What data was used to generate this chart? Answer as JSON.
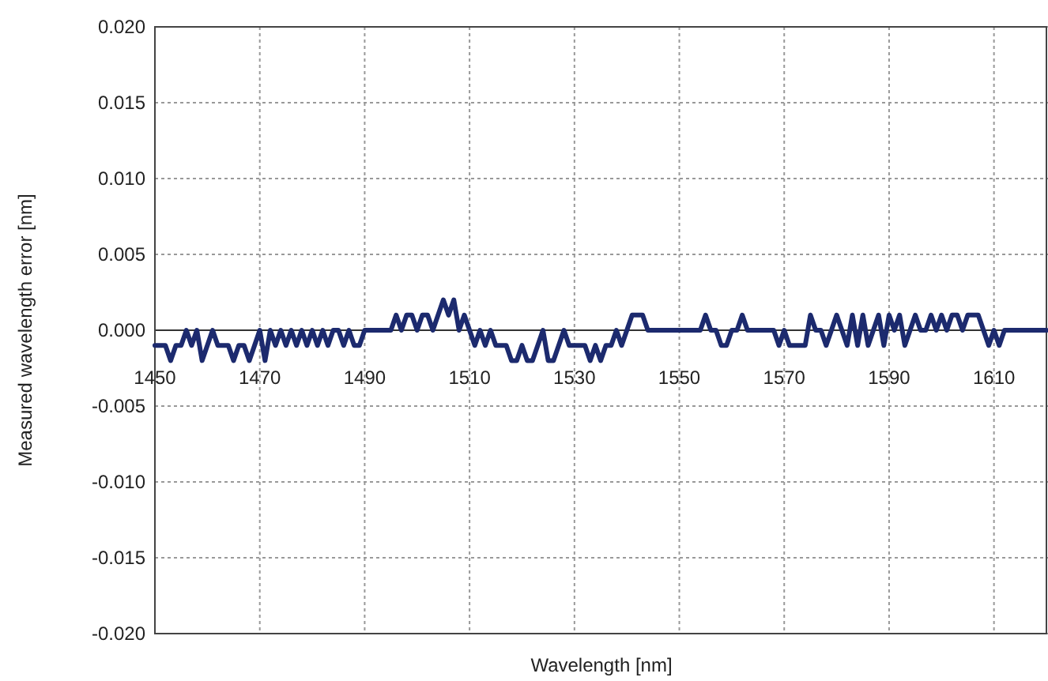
{
  "chart_data": {
    "type": "line",
    "xlabel": "Wavelength  [nm]",
    "ylabel": "Measured wavelength error  [nm]",
    "xlim": [
      1450,
      1620
    ],
    "xticks": [
      1450,
      1470,
      1490,
      1510,
      1530,
      1550,
      1570,
      1590,
      1610
    ],
    "ylim": [
      -0.02,
      0.02
    ],
    "yticks": [
      {
        "value": -0.02,
        "label": "-0.020"
      },
      {
        "value": -0.015,
        "label": "-0.015"
      },
      {
        "value": -0.01,
        "label": "-0.010"
      },
      {
        "value": -0.005,
        "label": "-0.005"
      },
      {
        "value": 0,
        "label": "0.000"
      },
      {
        "value": 0.005,
        "label": "0.005"
      },
      {
        "value": 0.01,
        "label": "0.010"
      },
      {
        "value": 0.015,
        "label": "0.015"
      },
      {
        "value": 0.02,
        "label": "0.020"
      }
    ],
    "grid": true,
    "series": [
      {
        "color": "#1c2a6e",
        "x": [
          1450,
          1451,
          1452,
          1453,
          1454,
          1455,
          1456,
          1457,
          1458,
          1459,
          1460,
          1461,
          1462,
          1463,
          1464,
          1465,
          1466,
          1467,
          1468,
          1469,
          1470,
          1471,
          1472,
          1473,
          1474,
          1475,
          1476,
          1477,
          1478,
          1479,
          1480,
          1481,
          1482,
          1483,
          1484,
          1485,
          1486,
          1487,
          1488,
          1489,
          1490,
          1495,
          1496,
          1497,
          1498,
          1499,
          1500,
          1501,
          1502,
          1503,
          1504,
          1505,
          1506,
          1507,
          1508,
          1509,
          1510,
          1511,
          1512,
          1513,
          1514,
          1515,
          1516,
          1517,
          1518,
          1519,
          1520,
          1521,
          1522,
          1523,
          1524,
          1525,
          1526,
          1527,
          1528,
          1529,
          1530,
          1531,
          1532,
          1533,
          1534,
          1535,
          1536,
          1537,
          1538,
          1539,
          1540,
          1541,
          1542,
          1543,
          1544,
          1554,
          1555,
          1556,
          1557,
          1558,
          1559,
          1560,
          1561,
          1562,
          1563,
          1568,
          1569,
          1570,
          1571,
          1572,
          1573,
          1574,
          1575,
          1576,
          1577,
          1578,
          1579,
          1580,
          1581,
          1582,
          1583,
          1584,
          1585,
          1586,
          1587,
          1588,
          1589,
          1590,
          1591,
          1592,
          1593,
          1594,
          1595,
          1596,
          1597,
          1598,
          1599,
          1600,
          1601,
          1602,
          1603,
          1604,
          1605,
          1606,
          1607,
          1608,
          1609,
          1610,
          1611,
          1612,
          1620
        ],
        "values": [
          -0.001,
          -0.001,
          -0.001,
          -0.002,
          -0.001,
          -0.001,
          0,
          -0.001,
          0,
          -0.002,
          -0.001,
          0,
          -0.001,
          -0.001,
          -0.001,
          -0.002,
          -0.001,
          -0.001,
          -0.002,
          -0.001,
          0,
          -0.002,
          0,
          -0.001,
          0,
          -0.001,
          0,
          -0.001,
          0,
          -0.001,
          0,
          -0.001,
          0,
          -0.001,
          0,
          0,
          -0.001,
          0,
          -0.001,
          -0.001,
          0,
          0,
          0.001,
          0,
          0.001,
          0.001,
          0,
          0.001,
          0.001,
          0,
          0.001,
          0.002,
          0.001,
          0.002,
          0,
          0.001,
          0,
          -0.001,
          0,
          -0.001,
          0,
          -0.001,
          -0.001,
          -0.001,
          -0.002,
          -0.002,
          -0.001,
          -0.002,
          -0.002,
          -0.001,
          0,
          -0.002,
          -0.002,
          -0.001,
          0,
          -0.001,
          -0.001,
          -0.001,
          -0.001,
          -0.002,
          -0.001,
          -0.002,
          -0.001,
          -0.001,
          0,
          -0.001,
          0,
          0.001,
          0.001,
          0.001,
          0,
          0,
          0.001,
          0,
          0,
          -0.001,
          -0.001,
          0,
          0,
          0.001,
          0,
          0,
          -0.001,
          0,
          -0.001,
          -0.001,
          -0.001,
          -0.001,
          0.001,
          0,
          0,
          -0.001,
          0,
          0.001,
          0,
          -0.001,
          0.001,
          -0.001,
          0.001,
          -0.001,
          0,
          0.001,
          -0.001,
          0.001,
          0,
          0.001,
          -0.001,
          0,
          0.001,
          0,
          0,
          0.001,
          0,
          0.001,
          0,
          0.001,
          0.001,
          0,
          0.001,
          0.001,
          0.001,
          0,
          -0.001,
          0,
          -0.001,
          0,
          0
        ]
      }
    ]
  }
}
